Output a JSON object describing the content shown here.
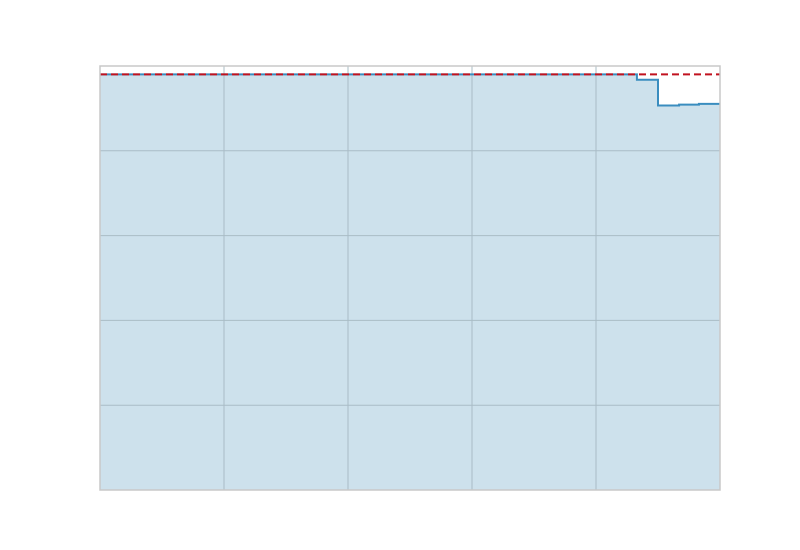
{
  "chart_data": {
    "type": "area",
    "title": "",
    "xlabel": "",
    "ylabel": "",
    "xlim": [
      0,
      50
    ],
    "ylim": [
      0,
      1.02
    ],
    "grid": true,
    "x_gridlines": [
      10,
      20,
      30,
      40
    ],
    "y_gridlines": [
      0.204,
      0.408,
      0.612,
      0.816
    ],
    "series": [
      {
        "drawstyle": "steps-post",
        "fill": true,
        "x": [
          0,
          43.3,
          45.0,
          46.7,
          48.3,
          50
        ],
        "y": [
          1.0,
          0.987,
          0.925,
          0.927,
          0.929,
          0.929
        ]
      }
    ],
    "reference_line": {
      "y": 1.0
    },
    "colors": {
      "fill": "#cde1ec",
      "line": "#3a8dbf",
      "reference_line": "#c1121f",
      "grid": "#a9bcc6",
      "spine": "#c8c8c8",
      "background": "#ffffff"
    }
  }
}
